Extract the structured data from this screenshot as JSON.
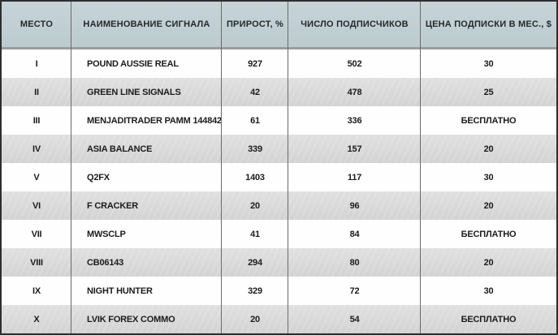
{
  "table": {
    "title": "Signals ranking table",
    "columns": [
      {
        "label": "МЕСТО"
      },
      {
        "label": "НАИМЕНОВАНИЕ СИГНАЛА"
      },
      {
        "label": "ПРИРОСТ, %"
      },
      {
        "label": "ЧИСЛО ПОДПИСЧИКОВ"
      },
      {
        "label": "ЦЕНА ПОДПИСКИ В МЕС., $"
      }
    ],
    "rows": [
      {
        "place": "I",
        "signal": "POUND AUSSIE REAL",
        "growth": "927",
        "subscribers": "502",
        "price": "30"
      },
      {
        "place": "II",
        "signal": "GREEN LINE SIGNALS",
        "growth": "42",
        "subscribers": "478",
        "price": "25"
      },
      {
        "place": "III",
        "signal": "MENJADITRADER PAMM 144842",
        "growth": "61",
        "subscribers": "336",
        "price": "БЕСПЛАТНО"
      },
      {
        "place": "IV",
        "signal": "ASIA BALANCE",
        "growth": "339",
        "subscribers": "157",
        "price": "20"
      },
      {
        "place": "V",
        "signal": "Q2FX",
        "growth": "1403",
        "subscribers": "117",
        "price": "30"
      },
      {
        "place": "VI",
        "signal": "F CRACKER",
        "growth": "20",
        "subscribers": "96",
        "price": "20"
      },
      {
        "place": "VII",
        "signal": "MWSCLP",
        "growth": "41",
        "subscribers": "84",
        "price": "БЕСПЛАТНО"
      },
      {
        "place": "VIII",
        "signal": "CB06143",
        "growth": "294",
        "subscribers": "80",
        "price": "20"
      },
      {
        "place": "IX",
        "signal": "NIGHT HUNTER",
        "growth": "329",
        "subscribers": "72",
        "price": "30"
      },
      {
        "place": "X",
        "signal": "LVIK FOREX COMMO",
        "growth": "20",
        "subscribers": "54",
        "price": "БЕСПЛАТНО"
      }
    ]
  },
  "colors": {
    "header_bg": "#c1cfd3",
    "alt_row_bottom": "#d3d3d3",
    "alt_row_top": "#e0e0e0",
    "row_bg": "#fefefe",
    "vline": "#6a6a6a",
    "frame": "#2e2e2e",
    "separator": "#9c9c9c",
    "text": "#1c1c1c"
  }
}
